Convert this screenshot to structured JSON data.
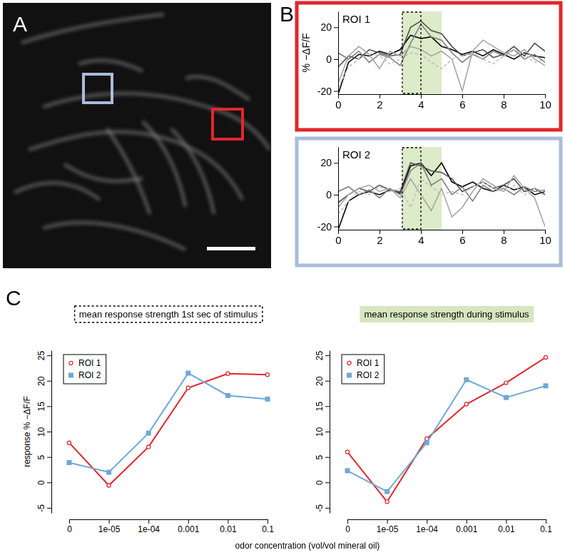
{
  "chart_data": [
    {
      "type": "image",
      "panel": "A"
    },
    {
      "type": "line",
      "panel": "B",
      "title": "ROI 1",
      "y_label": "% −ΔF/F",
      "x": [
        0,
        0.5,
        1,
        1.5,
        2,
        2.5,
        3,
        3.5,
        4,
        4.5,
        5,
        5.5,
        6,
        6.5,
        7,
        7.5,
        8,
        8.5,
        9,
        9.5,
        10
      ],
      "xlim": [
        0,
        10
      ],
      "xticks": [
        0,
        2,
        4,
        6,
        8,
        10
      ],
      "ylim": [
        -22,
        30
      ],
      "yticks": [
        -20,
        0,
        20
      ],
      "stimulus_span": [
        3.1,
        5
      ],
      "first_second_span": [
        3.1,
        4
      ],
      "series": [
        {
          "color": "#000000",
          "line_style": "solid",
          "values": [
            -22,
            -2,
            3,
            2,
            5,
            3,
            6,
            15,
            13,
            14,
            8,
            6,
            3,
            5,
            2,
            6,
            3,
            0,
            4,
            2,
            1
          ]
        },
        {
          "color": "#4d4d4d",
          "line_style": "solid",
          "values": [
            -5,
            2,
            0,
            6,
            4,
            2,
            3,
            20,
            24,
            18,
            16,
            8,
            2,
            4,
            6,
            1,
            3,
            8,
            2,
            10,
            5
          ]
        },
        {
          "color": "#808080",
          "line_style": "solid",
          "values": [
            4,
            0,
            5,
            -2,
            3,
            1,
            -4,
            10,
            22,
            14,
            12,
            4,
            -2,
            3,
            0,
            5,
            2,
            6,
            0,
            3,
            -2
          ]
        },
        {
          "color": "#a6a6a6",
          "line_style": "solid",
          "values": [
            -15,
            2,
            8,
            3,
            -6,
            5,
            2,
            8,
            6,
            2,
            5,
            0,
            -20,
            5,
            12,
            8,
            4,
            2,
            6,
            0,
            -4
          ]
        },
        {
          "color": "#bfbfbf",
          "line_style": "dashed",
          "values": [
            -18,
            -5,
            0,
            4,
            2,
            -3,
            0,
            4,
            3,
            -2,
            -6,
            0,
            2,
            4,
            0,
            -3,
            2,
            6,
            3,
            -2,
            0
          ]
        }
      ]
    },
    {
      "type": "line",
      "title": "ROI 2",
      "x": [
        0,
        0.5,
        1,
        1.5,
        2,
        2.5,
        3,
        3.5,
        4,
        4.5,
        5,
        5.5,
        6,
        6.5,
        7,
        7.5,
        8,
        8.5,
        9,
        9.5,
        10
      ],
      "xlim": [
        0,
        10
      ],
      "xticks": [
        0,
        2,
        4,
        6,
        8,
        10
      ],
      "ylim": [
        -22,
        30
      ],
      "yticks": [
        -20,
        0,
        20
      ],
      "stimulus_span": [
        3.1,
        5
      ],
      "first_second_span": [
        3.1,
        4
      ],
      "series": [
        {
          "color": "#000000",
          "line_style": "solid",
          "values": [
            -22,
            -4,
            0,
            2,
            0,
            3,
            1,
            18,
            20,
            12,
            20,
            8,
            5,
            8,
            4,
            2,
            6,
            3,
            5,
            0,
            2
          ]
        },
        {
          "color": "#4d4d4d",
          "line_style": "solid",
          "values": [
            -5,
            0,
            4,
            2,
            6,
            3,
            2,
            20,
            18,
            15,
            14,
            10,
            2,
            5,
            8,
            4,
            6,
            10,
            2,
            4,
            0
          ]
        },
        {
          "color": "#808080",
          "line_style": "solid",
          "values": [
            2,
            5,
            0,
            3,
            -2,
            4,
            0,
            15,
            20,
            6,
            10,
            0,
            5,
            -4,
            6,
            2,
            4,
            0,
            5,
            2,
            3
          ]
        },
        {
          "color": "#a6a6a6",
          "line_style": "solid",
          "values": [
            -8,
            0,
            4,
            6,
            2,
            4,
            -2,
            10,
            0,
            -10,
            4,
            -14,
            -8,
            2,
            10,
            6,
            2,
            12,
            4,
            -2,
            -20
          ]
        },
        {
          "color": "#bfbfbf",
          "line_style": "dashed",
          "values": [
            -12,
            -4,
            2,
            0,
            5,
            2,
            4,
            -8,
            10,
            5,
            0,
            2,
            0,
            5,
            8,
            4,
            2,
            6,
            0,
            4,
            2
          ]
        }
      ]
    },
    {
      "type": "line",
      "panel": "C",
      "title": "mean response strength 1st sec of stimulus",
      "y_label": "response % −ΔF/F",
      "x_label": "odor concentration (vol/vol mineral oil)",
      "categories": [
        "0",
        "1e-05",
        "1e-04",
        "0.001",
        "0.01",
        "0.1"
      ],
      "ylim": [
        -6,
        26
      ],
      "yticks": [
        -5,
        0,
        5,
        10,
        15,
        20,
        25
      ],
      "legend": "top-left",
      "series": [
        {
          "name": "ROI 1",
          "color": "#e3262b",
          "marker": "open-circle",
          "values": [
            7.8,
            -0.6,
            7.0,
            18.6,
            21.4,
            21.2
          ]
        },
        {
          "name": "ROI 2",
          "color": "#6fa8d8",
          "marker": "square",
          "values": [
            3.9,
            2.0,
            9.7,
            21.5,
            17.1,
            16.4
          ]
        }
      ]
    },
    {
      "type": "line",
      "title": "mean response strength during stimulus",
      "categories": [
        "0",
        "1e-05",
        "1e-04",
        "0.001",
        "0.01",
        "0.1"
      ],
      "ylim": [
        -6,
        26
      ],
      "yticks": [
        -5,
        0,
        5,
        10,
        15,
        20,
        25
      ],
      "legend": "top-left",
      "series": [
        {
          "name": "ROI 1",
          "color": "#e3262b",
          "marker": "open-circle",
          "values": [
            6.0,
            -3.8,
            8.6,
            15.4,
            19.6,
            24.6
          ]
        },
        {
          "name": "ROI 2",
          "color": "#6fa8d8",
          "marker": "square",
          "values": [
            2.3,
            -1.8,
            7.8,
            20.2,
            16.7,
            19.0
          ]
        }
      ]
    }
  ]
}
